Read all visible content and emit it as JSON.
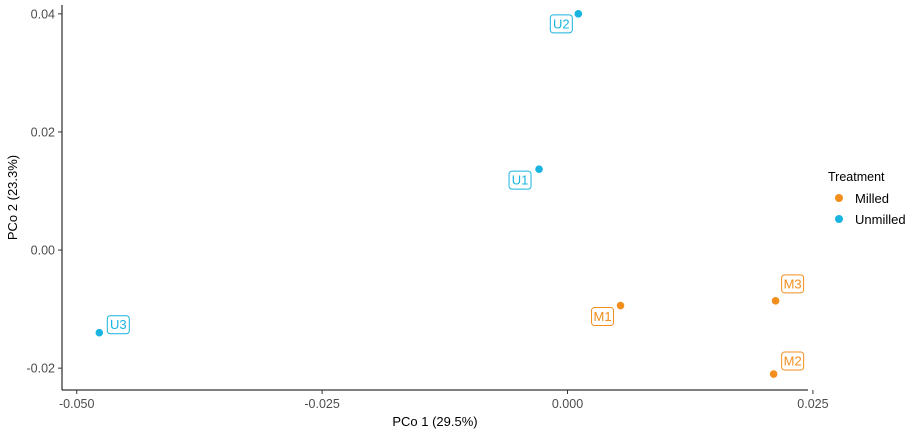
{
  "chart_data": {
    "type": "scatter",
    "xlabel": "PCo 1 (29.5%)",
    "ylabel": "PCo 2 (23.3%)",
    "xlim": [
      -0.0515,
      0.0245
    ],
    "ylim": [
      -0.0237,
      0.0415
    ],
    "x_ticks": [
      -0.05,
      -0.025,
      0.0,
      0.025
    ],
    "x_tick_labels": [
      "-0.050",
      "-0.025",
      "0.000",
      "0.025"
    ],
    "y_ticks": [
      -0.02,
      0.0,
      0.02,
      0.04
    ],
    "y_tick_labels": [
      "-0.02",
      "0.00",
      "0.02",
      "0.04"
    ],
    "grid": false,
    "legend": {
      "title": "Treatment",
      "position": "right",
      "entries": [
        {
          "name": "Milled",
          "color": "#f28e1c"
        },
        {
          "name": "Unmilled",
          "color": "#19b4e0"
        }
      ]
    },
    "series": [
      {
        "name": "Milled",
        "color": "#f28e1c",
        "points": [
          {
            "label": "M1",
            "x": 0.0054,
            "y": -0.0094
          },
          {
            "label": "M2",
            "x": 0.021,
            "y": -0.021
          },
          {
            "label": "M3",
            "x": 0.0212,
            "y": -0.0086
          }
        ]
      },
      {
        "name": "Unmilled",
        "color": "#19b4e0",
        "points": [
          {
            "label": "U1",
            "x": -0.0029,
            "y": 0.0137
          },
          {
            "label": "U2",
            "x": 0.0011,
            "y": 0.04
          },
          {
            "label": "U3",
            "x": -0.0477,
            "y": -0.014
          }
        ]
      }
    ]
  }
}
